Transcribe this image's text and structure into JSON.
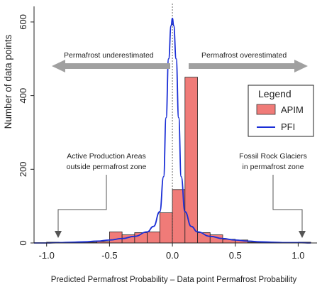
{
  "chart_data": {
    "type": "bar",
    "title": "",
    "xlabel": "Predicted Permafrost Probability – Data point Permafrost Probability",
    "ylabel": "Number of data points",
    "xlim": [
      -1.1,
      1.15
    ],
    "ylim": [
      0,
      650
    ],
    "xticks": [
      -1.0,
      -0.5,
      0.0,
      0.5,
      1.0
    ],
    "xtick_labels": [
      "-1.0",
      "-0.5",
      "0.0",
      "0.5",
      "1.0"
    ],
    "yticks": [
      0,
      200,
      400,
      600
    ],
    "ytick_labels": [
      "0",
      "200",
      "400",
      "600"
    ],
    "legend": {
      "title": "Legend",
      "position": "right",
      "entries": [
        {
          "label": "APIM",
          "kind": "patch",
          "color": "#f07b78"
        },
        {
          "label": "PFI",
          "kind": "line",
          "color": "#1a2ed6"
        }
      ]
    },
    "series": [
      {
        "name": "APIM",
        "kind": "histogram",
        "color": "#f07b78",
        "bin_width": 0.1,
        "bin_starts": [
          -1.0,
          -0.9,
          -0.8,
          -0.7,
          -0.6,
          -0.5,
          -0.4,
          -0.3,
          -0.2,
          -0.1,
          0.0,
          0.1,
          0.2,
          0.3,
          0.4,
          0.5,
          0.6,
          0.7,
          0.8,
          0.9,
          1.0
        ],
        "values": [
          2,
          1,
          1,
          2,
          4,
          30,
          22,
          28,
          30,
          82,
          145,
          450,
          28,
          22,
          10,
          8,
          2,
          1,
          1,
          1,
          2
        ]
      },
      {
        "name": "PFI",
        "kind": "density-line",
        "color": "#1a2ed6",
        "x": [
          -1.1,
          -1.0,
          -0.9,
          -0.8,
          -0.7,
          -0.6,
          -0.5,
          -0.4,
          -0.3,
          -0.2,
          -0.15,
          -0.1,
          -0.07,
          -0.05,
          -0.03,
          -0.01,
          0.0,
          0.01,
          0.03,
          0.05,
          0.07,
          0.1,
          0.15,
          0.2,
          0.3,
          0.4,
          0.5,
          0.6,
          0.7,
          0.8,
          0.9,
          1.0,
          1.1
        ],
        "y": [
          0,
          0,
          1,
          2,
          3,
          5,
          8,
          12,
          18,
          30,
          45,
          85,
          180,
          340,
          500,
          590,
          610,
          590,
          500,
          340,
          180,
          85,
          45,
          30,
          18,
          12,
          8,
          5,
          3,
          2,
          1,
          1,
          0
        ]
      }
    ],
    "reference_line": {
      "x": 0.0,
      "style": "dotted"
    },
    "annotations": {
      "underestimated": "Permafrost underestimated",
      "overestimated": "Permafrost overestimated",
      "left_box_line1": "Active Production Areas",
      "left_box_line2": "outside permafrost zone",
      "right_box_line1": "Fossil Rock Glaciers",
      "right_box_line2": "in permafrost zone"
    }
  }
}
